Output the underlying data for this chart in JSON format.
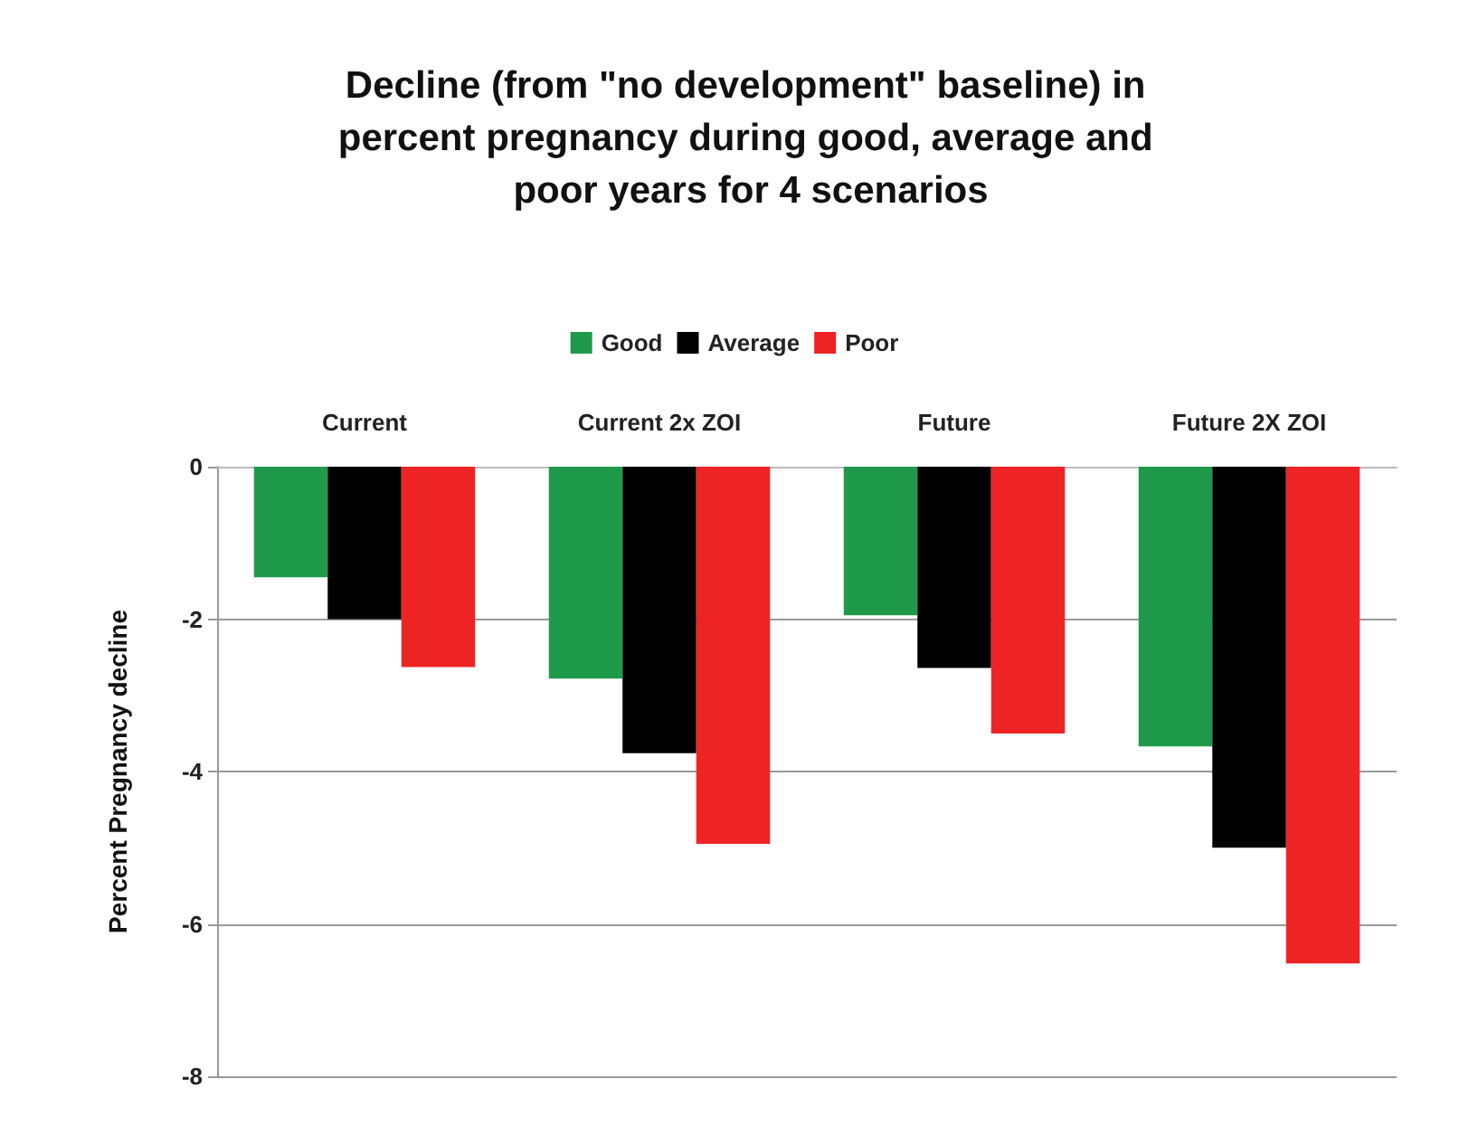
{
  "chart_data": {
    "type": "bar",
    "title": "Decline (from \"no development\" baseline) in percent pregnancy during good, average and poor years for 4 scenarios",
    "ylabel": "Percent Pregnancy decline",
    "categories": [
      "Current",
      "Current 2x ZOI",
      "Future",
      "Future 2X ZOI"
    ],
    "series": [
      {
        "name": "Good",
        "color": "#1f9a4b",
        "values": [
          -1.45,
          -2.78,
          -1.95,
          -3.67
        ]
      },
      {
        "name": "Average",
        "color": "#000000",
        "values": [
          -2.0,
          -3.76,
          -2.64,
          -5.0
        ]
      },
      {
        "name": "Poor",
        "color": "#ee2424",
        "values": [
          -2.63,
          -4.95,
          -3.5,
          -6.52
        ]
      }
    ],
    "ylim": [
      -8,
      0
    ],
    "yticks": [
      -8,
      -6,
      -4,
      -2,
      0
    ],
    "grid": "y",
    "legend": "top"
  }
}
